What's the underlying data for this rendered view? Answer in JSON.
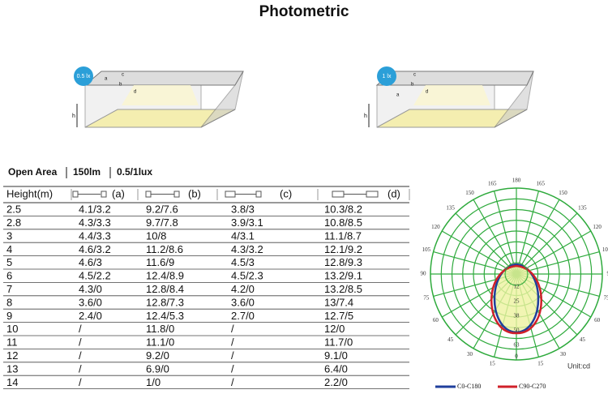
{
  "title": "Photometric",
  "illustrations": [
    {
      "badge": "0.5 lx",
      "labels": [
        "a",
        "b",
        "c",
        "d",
        "h"
      ]
    },
    {
      "badge": "1 lx",
      "labels": [
        "a",
        "b",
        "c",
        "d",
        "h"
      ]
    }
  ],
  "subtitle": {
    "parts": [
      "Open Area",
      "150lm",
      "0.5/1lux"
    ]
  },
  "table": {
    "header": [
      "Height(m)",
      "(a)",
      "(b)",
      "(c)",
      "(d)"
    ],
    "rows": [
      [
        "2.5",
        "4.1/3.2",
        "9.2/7.6",
        "3.8/3",
        "10.3/8.2"
      ],
      [
        "2.8",
        "4.3/3.3",
        "9.7/7.8",
        "3.9/3.1",
        "10.8/8.5"
      ],
      [
        "3",
        "4.4/3.3",
        "10/8",
        "4/3.1",
        "11.1/8.7"
      ],
      [
        "4",
        "4.6/3.2",
        "11.2/8.6",
        "4.3/3.2",
        "12.1/9.2"
      ],
      [
        "5",
        "4.6/3",
        "11.6/9",
        "4.5/3",
        "12.8/9.3"
      ],
      [
        "6",
        "4.5/2.2",
        "12.4/8.9",
        "4.5/2.3",
        "13.2/9.1"
      ],
      [
        "7",
        "4.3/0",
        "12.8/8.4",
        "4.2/0",
        "13.2/8.5"
      ],
      [
        "8",
        "3.6/0",
        "12.8/7.3",
        "3.6/0",
        "13/7.4"
      ],
      [
        "9",
        "2.4/0",
        "12.4/5.3",
        "2.7/0",
        "12.7/5"
      ],
      [
        "10",
        "/",
        "11.8/0",
        "/",
        "12/0"
      ],
      [
        "11",
        "/",
        "11.1/0",
        "/",
        "11.7/0"
      ],
      [
        "12",
        "/",
        "9.2/0",
        "/",
        "9.1/0"
      ],
      [
        "13",
        "/",
        "6.9/0",
        "/",
        "6.4/0"
      ],
      [
        "14",
        "/",
        "1/0",
        "/",
        "2.2/0"
      ]
    ]
  },
  "polar": {
    "top_label": "180",
    "bottom_label": "0",
    "left_labels": [
      "15",
      "30",
      "45",
      "60",
      "75",
      "90",
      "105",
      "120",
      "135",
      "150",
      "165"
    ],
    "right_labels": [
      "15",
      "30",
      "45",
      "60",
      "75",
      "90",
      "105",
      "120",
      "135",
      "150",
      "165"
    ],
    "radial_labels": [
      "12",
      "25",
      "38",
      "50",
      "63"
    ],
    "unit": "Unit:cd",
    "legend": [
      "C0-C180",
      "C90-C270"
    ]
  }
}
